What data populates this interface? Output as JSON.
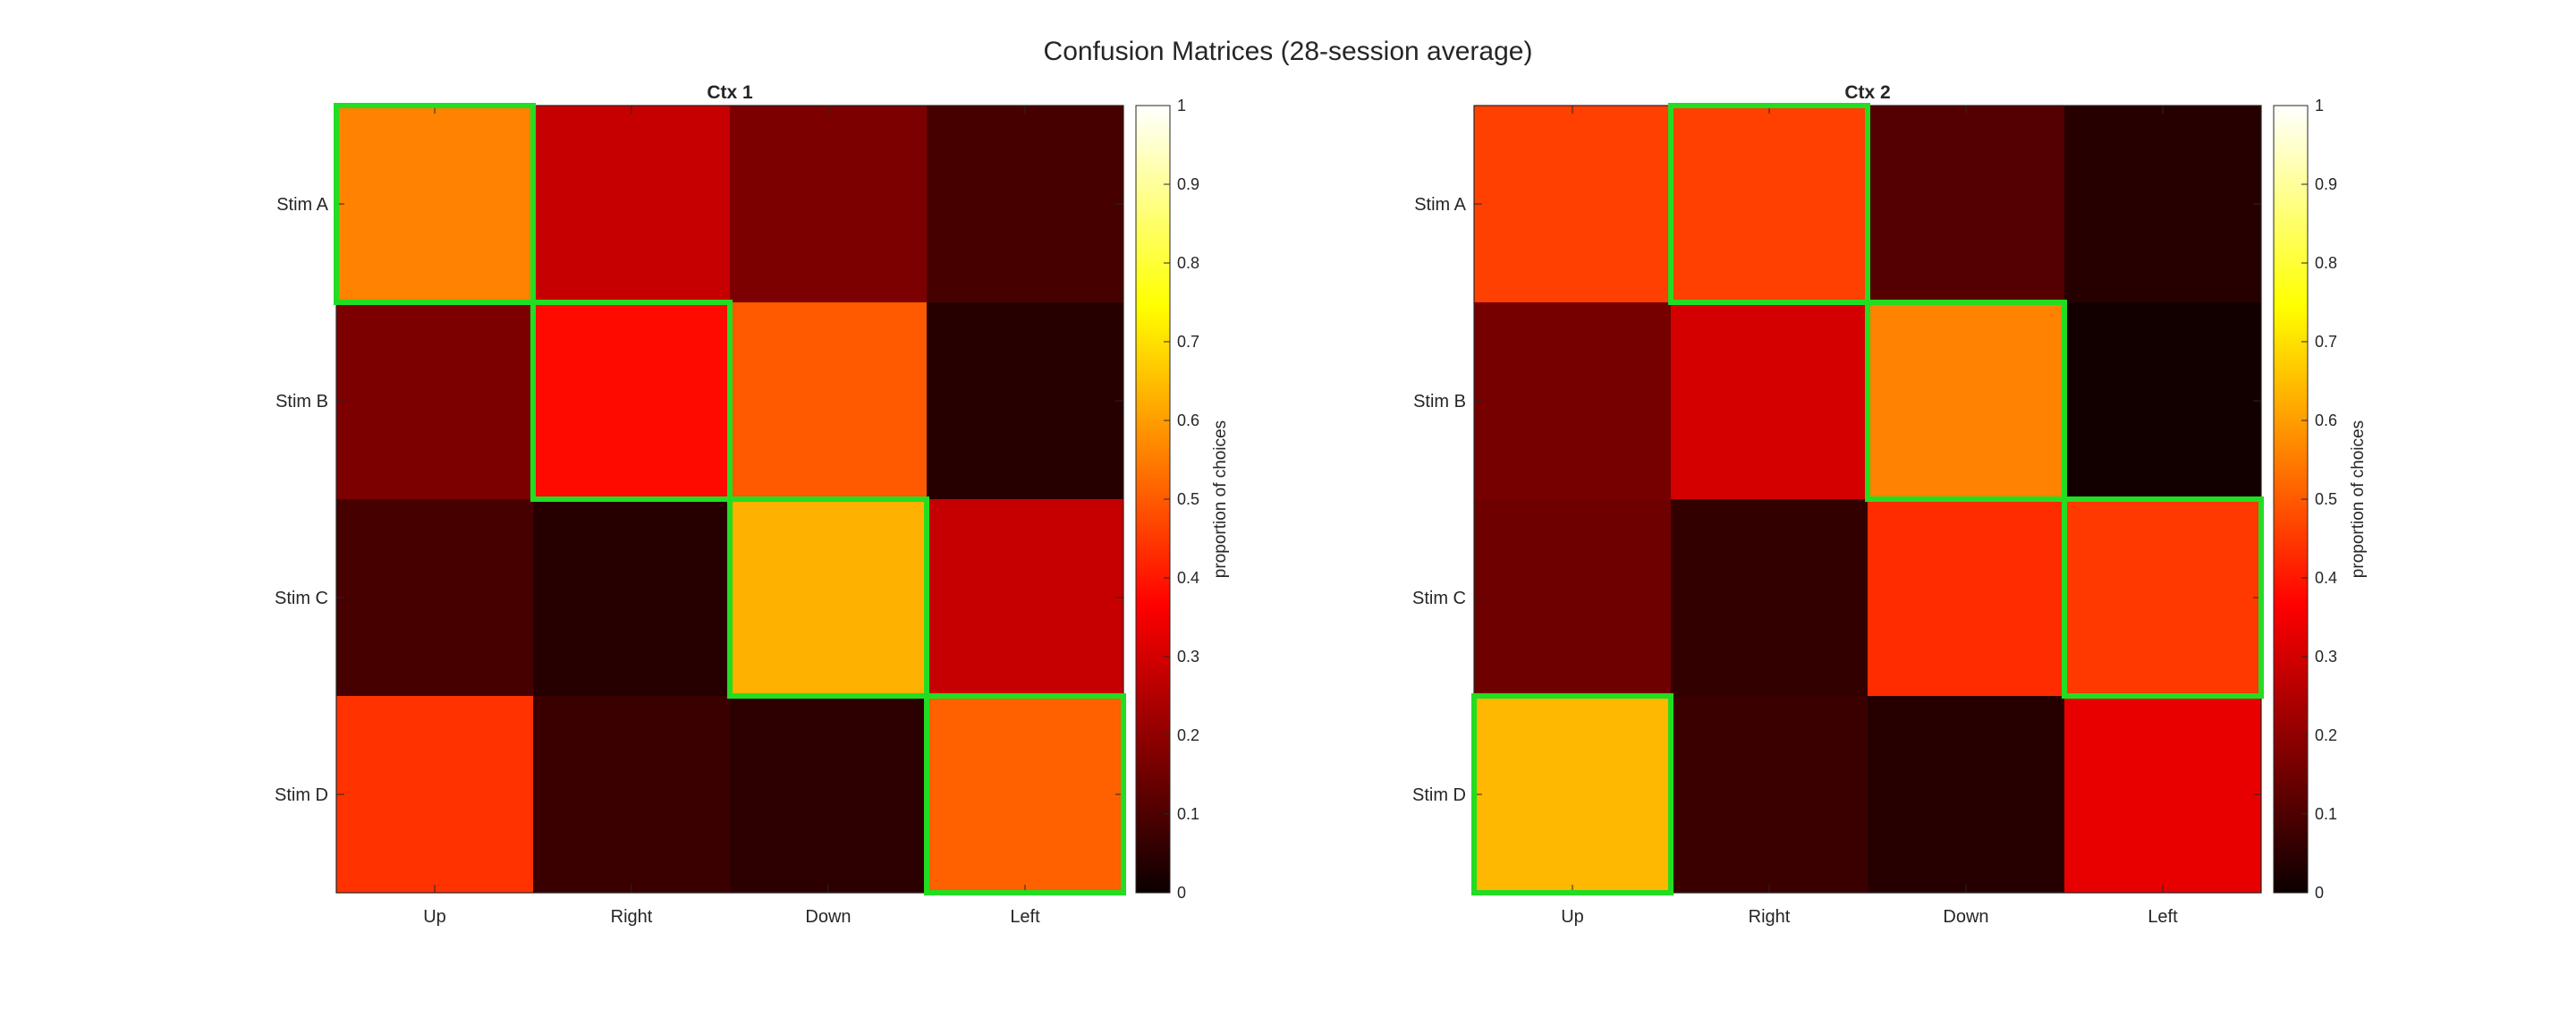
{
  "figure_title": "Confusion Matrices (28-session average)",
  "highlight_color": "#22dd22",
  "colormap": "hot",
  "chart_data": [
    {
      "type": "heatmap",
      "title": "Ctx 1",
      "x_categories": [
        "Up",
        "Right",
        "Down",
        "Left"
      ],
      "y_categories": [
        "Stim A",
        "Stim B",
        "Stim C",
        "Stim D"
      ],
      "values": [
        [
          0.56,
          0.28,
          0.17,
          0.09
        ],
        [
          0.17,
          0.38,
          0.5,
          0.04
        ],
        [
          0.09,
          0.04,
          0.63,
          0.28
        ],
        [
          0.44,
          0.07,
          0.05,
          0.51
        ]
      ],
      "highlighted_cells": [
        [
          0,
          0
        ],
        [
          1,
          1
        ],
        [
          2,
          2
        ],
        [
          3,
          3
        ]
      ],
      "colorbar": {
        "label": "proportion of choices",
        "ticks": [
          "0",
          "0.1",
          "0.2",
          "0.3",
          "0.4",
          "0.5",
          "0.6",
          "0.7",
          "0.8",
          "0.9",
          "1"
        ],
        "range": [
          0,
          1
        ]
      }
    },
    {
      "type": "heatmap",
      "title": "Ctx 2",
      "x_categories": [
        "Up",
        "Right",
        "Down",
        "Left"
      ],
      "y_categories": [
        "Stim A",
        "Stim B",
        "Stim C",
        "Stim D"
      ],
      "values": [
        [
          0.46,
          0.46,
          0.11,
          0.04
        ],
        [
          0.16,
          0.3,
          0.56,
          0.01
        ],
        [
          0.15,
          0.06,
          0.43,
          0.45
        ],
        [
          0.64,
          0.07,
          0.04,
          0.33
        ]
      ],
      "highlighted_cells": [
        [
          0,
          1
        ],
        [
          1,
          2
        ],
        [
          2,
          3
        ],
        [
          3,
          0
        ]
      ],
      "colorbar": {
        "label": "proportion of choices",
        "ticks": [
          "0",
          "0.1",
          "0.2",
          "0.3",
          "0.4",
          "0.5",
          "0.6",
          "0.7",
          "0.8",
          "0.9",
          "1"
        ],
        "range": [
          0,
          1
        ]
      }
    }
  ]
}
